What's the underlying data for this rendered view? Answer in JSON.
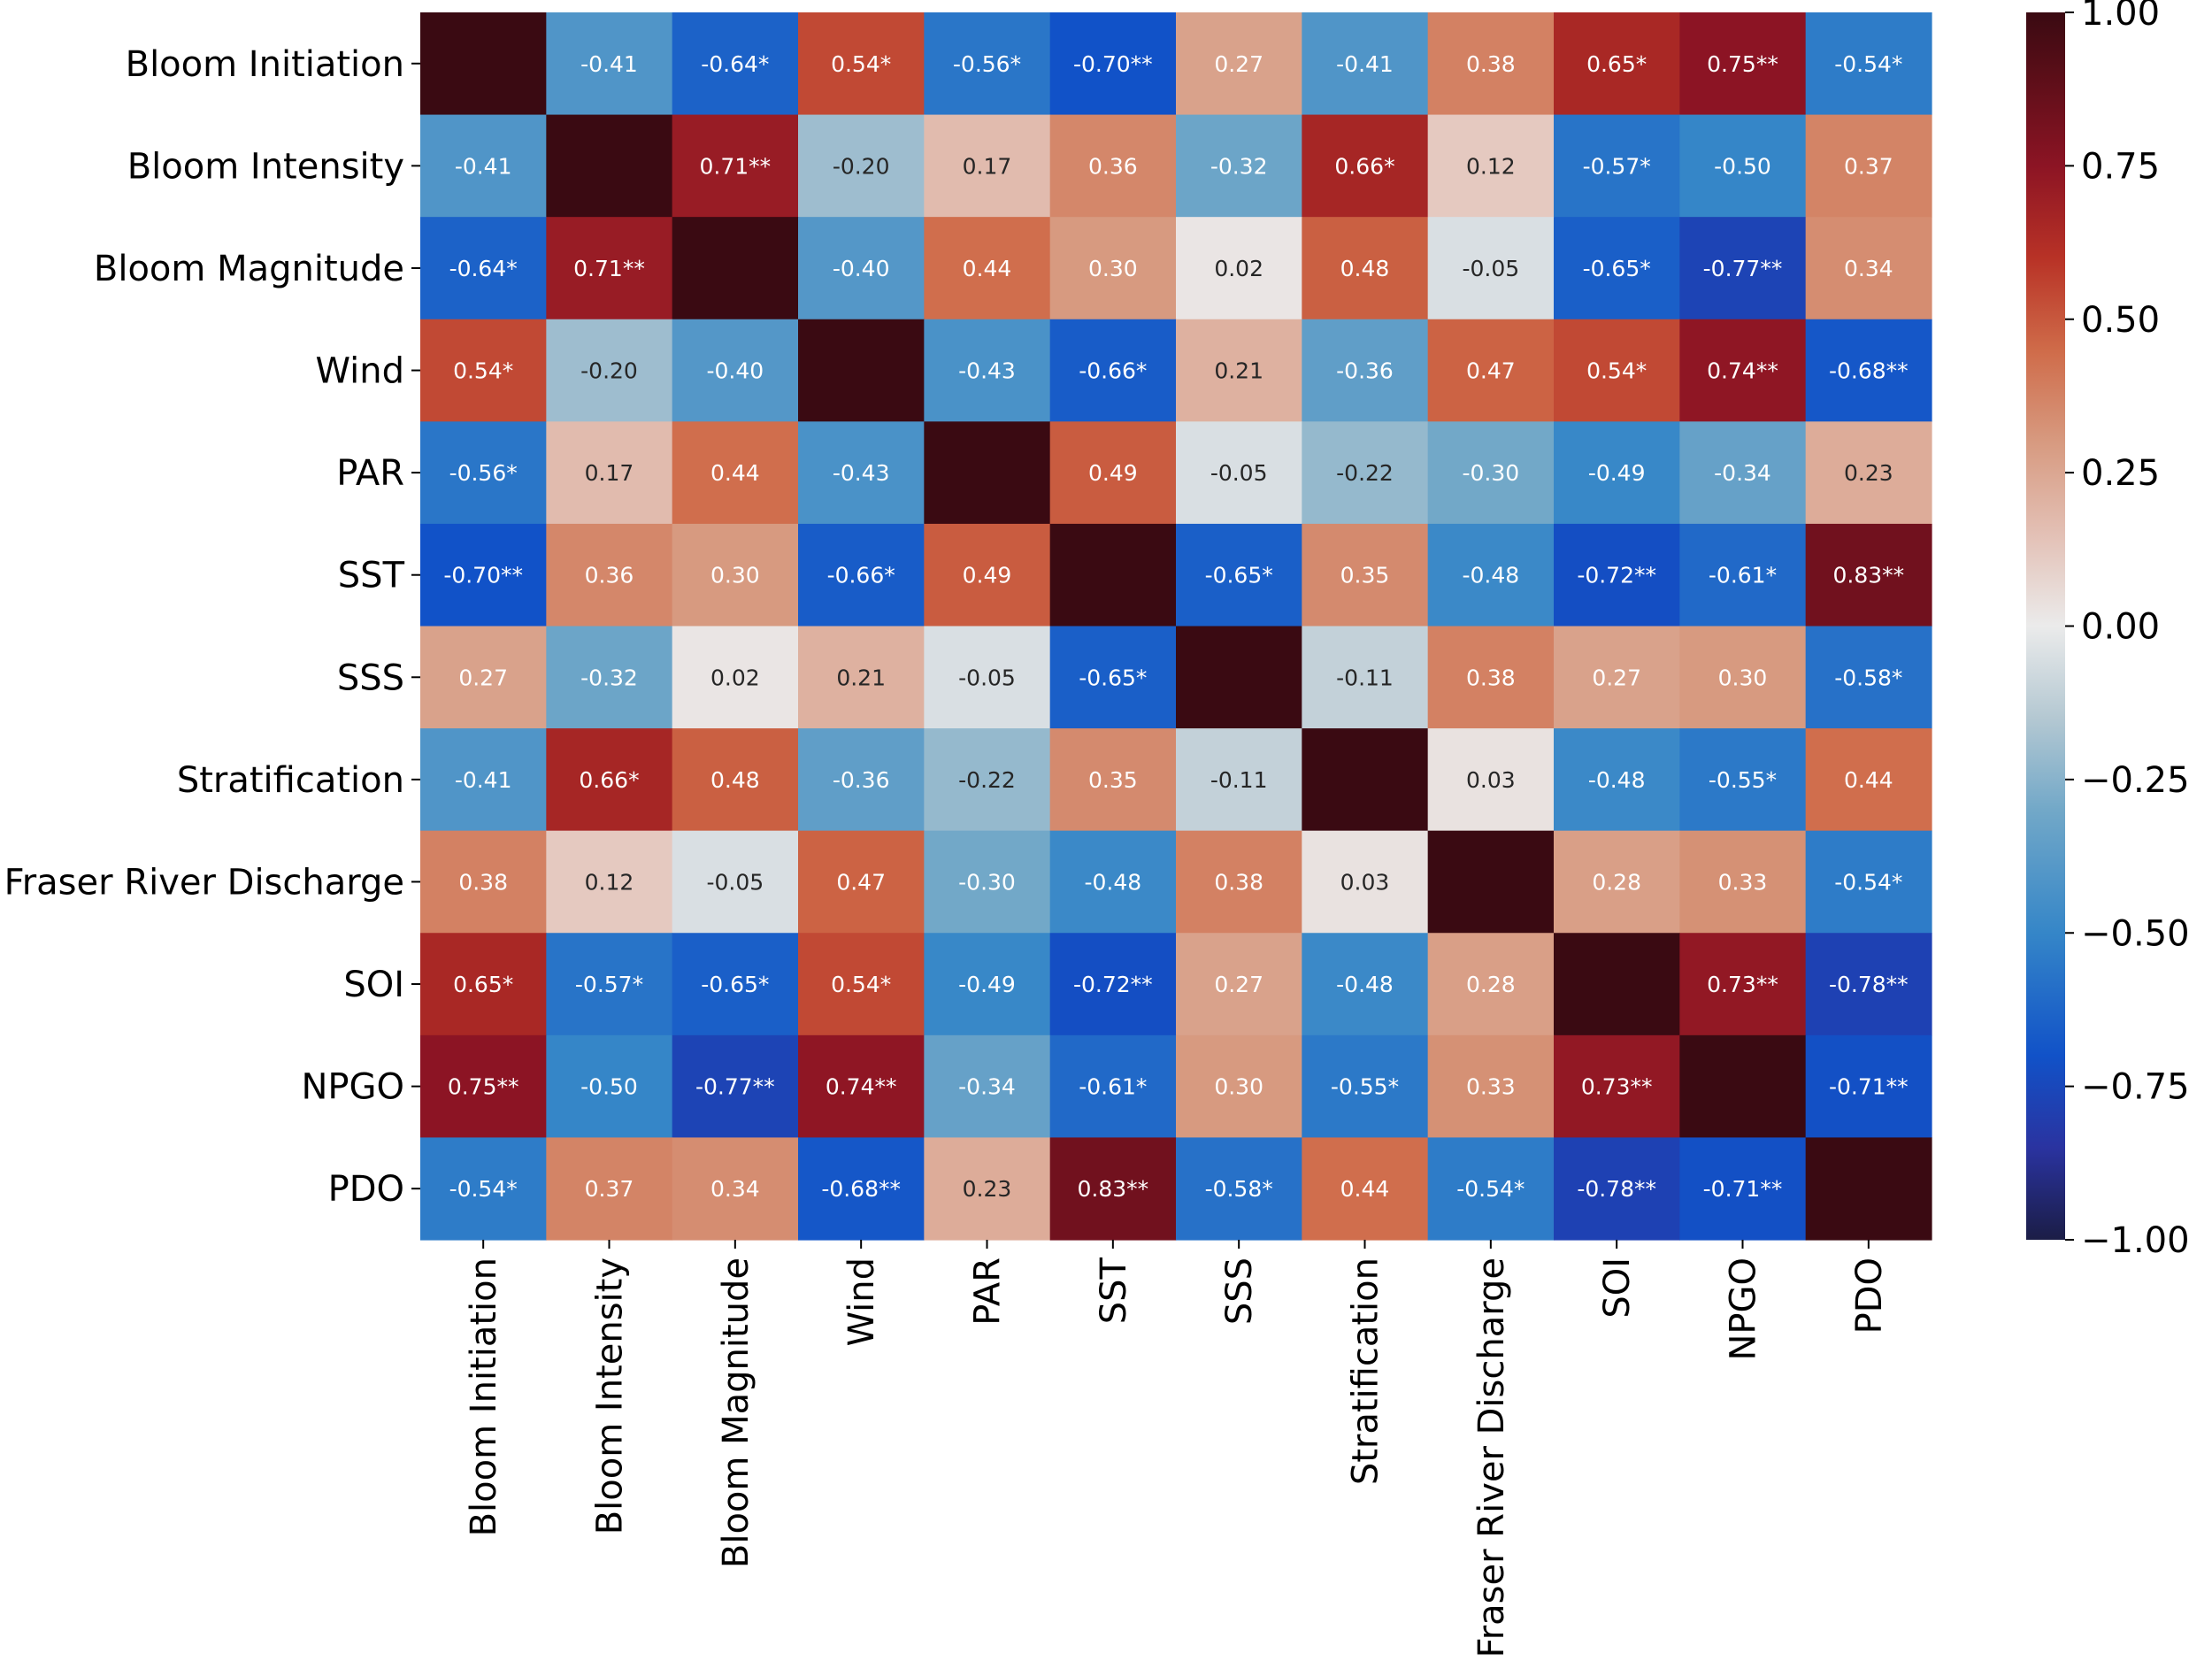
{
  "chart_data": {
    "type": "heatmap",
    "title": "",
    "xlabel": "",
    "ylabel": "",
    "variables": [
      "Bloom Initiation",
      "Bloom Intensity",
      "Bloom Magnitude",
      "Wind",
      "PAR",
      "SST",
      "SSS",
      "Stratification",
      "Fraser River Discharge",
      "SOI",
      "NPGO",
      "PDO"
    ],
    "values": [
      [
        1.0,
        -0.41,
        -0.64,
        0.54,
        -0.56,
        -0.7,
        0.27,
        -0.41,
        0.38,
        0.65,
        0.75,
        -0.54
      ],
      [
        -0.41,
        1.0,
        0.71,
        -0.2,
        0.17,
        0.36,
        -0.32,
        0.66,
        0.12,
        -0.57,
        -0.5,
        0.37
      ],
      [
        -0.64,
        0.71,
        1.0,
        -0.4,
        0.44,
        0.3,
        0.02,
        0.48,
        -0.05,
        -0.65,
        -0.77,
        0.34
      ],
      [
        0.54,
        -0.2,
        -0.4,
        1.0,
        -0.43,
        -0.66,
        0.21,
        -0.36,
        0.47,
        0.54,
        0.74,
        -0.68
      ],
      [
        -0.56,
        0.17,
        0.44,
        -0.43,
        1.0,
        0.49,
        -0.05,
        -0.22,
        -0.3,
        -0.49,
        -0.34,
        0.23
      ],
      [
        -0.7,
        0.36,
        0.3,
        -0.66,
        0.49,
        1.0,
        -0.65,
        0.35,
        -0.48,
        -0.72,
        -0.61,
        0.83
      ],
      [
        0.27,
        -0.32,
        0.02,
        0.21,
        -0.05,
        -0.65,
        1.0,
        -0.11,
        0.38,
        0.27,
        0.3,
        -0.58
      ],
      [
        -0.41,
        0.66,
        0.48,
        -0.36,
        -0.22,
        0.35,
        -0.11,
        1.0,
        0.03,
        -0.48,
        -0.55,
        0.44
      ],
      [
        0.38,
        0.12,
        -0.05,
        0.47,
        -0.3,
        -0.48,
        0.38,
        0.03,
        1.0,
        0.28,
        0.33,
        -0.54
      ],
      [
        0.65,
        -0.57,
        -0.65,
        0.54,
        -0.49,
        -0.72,
        0.27,
        -0.48,
        0.28,
        1.0,
        0.73,
        -0.78
      ],
      [
        0.75,
        -0.5,
        -0.77,
        0.74,
        -0.34,
        -0.61,
        0.3,
        -0.55,
        0.33,
        0.73,
        1.0,
        -0.71
      ],
      [
        -0.54,
        0.37,
        0.34,
        -0.68,
        0.23,
        0.83,
        -0.58,
        0.44,
        -0.54,
        -0.78,
        -0.71,
        1.0
      ]
    ],
    "cell_labels": [
      [
        "",
        "-0.41",
        "-0.64*",
        "0.54*",
        "-0.56*",
        "-0.70**",
        "0.27",
        "-0.41",
        "0.38",
        "0.65*",
        "0.75**",
        "-0.54*"
      ],
      [
        "-0.41",
        "",
        "0.71**",
        "-0.20",
        "0.17",
        "0.36",
        "-0.32",
        "0.66*",
        "0.12",
        "-0.57*",
        "-0.50",
        "0.37"
      ],
      [
        "-0.64*",
        "0.71**",
        "",
        "-0.40",
        "0.44",
        "0.30",
        "0.02",
        "0.48",
        "-0.05",
        "-0.65*",
        "-0.77**",
        "0.34"
      ],
      [
        "0.54*",
        "-0.20",
        "-0.40",
        "",
        "-0.43",
        "-0.66*",
        "0.21",
        "-0.36",
        "0.47",
        "0.54*",
        "0.74**",
        "-0.68**"
      ],
      [
        "-0.56*",
        "0.17",
        "0.44",
        "-0.43",
        "",
        "0.49",
        "-0.05",
        "-0.22",
        "-0.30",
        "-0.49",
        "-0.34",
        "0.23"
      ],
      [
        "-0.70**",
        "0.36",
        "0.30",
        "-0.66*",
        "0.49",
        "",
        "-0.65*",
        "0.35",
        "-0.48",
        "-0.72**",
        "-0.61*",
        "0.83**"
      ],
      [
        "0.27",
        "-0.32",
        "0.02",
        "0.21",
        "-0.05",
        "-0.65*",
        "",
        "-0.11",
        "0.38",
        "0.27",
        "0.30",
        "-0.58*"
      ],
      [
        "-0.41",
        "0.66*",
        "0.48",
        "-0.36",
        "-0.22",
        "0.35",
        "-0.11",
        "",
        "0.03",
        "-0.48",
        "-0.55*",
        "0.44"
      ],
      [
        "0.38",
        "0.12",
        "-0.05",
        "0.47",
        "-0.30",
        "-0.48",
        "0.38",
        "0.03",
        "",
        "0.28",
        "0.33",
        "-0.54*"
      ],
      [
        "0.65*",
        "-0.57*",
        "-0.65*",
        "0.54*",
        "-0.49",
        "-0.72**",
        "0.27",
        "-0.48",
        "0.28",
        "",
        "0.73**",
        "-0.78**"
      ],
      [
        "0.75**",
        "-0.50",
        "-0.77**",
        "0.74**",
        "-0.34",
        "-0.61*",
        "0.30",
        "-0.55*",
        "0.33",
        "0.73**",
        "",
        "-0.71**"
      ],
      [
        "-0.54*",
        "0.37",
        "0.34",
        "-0.68**",
        "0.23",
        "0.83**",
        "-0.58*",
        "0.44",
        "-0.54*",
        "-0.78**",
        "-0.71**",
        ""
      ]
    ],
    "colorbar": {
      "range": [
        -1.0,
        1.0
      ],
      "ticks": [
        1.0,
        0.75,
        0.5,
        0.25,
        0.0,
        -0.25,
        -0.5,
        -0.75,
        -1.0
      ],
      "tick_labels": [
        "1.00",
        "0.75",
        "0.50",
        "0.25",
        "0.00",
        "−0.25",
        "−0.50",
        "−0.75",
        "−1.00"
      ],
      "placement": "right"
    },
    "colormap_stops": [
      {
        "v": -1.0,
        "color": "#1b1d46"
      },
      {
        "v": -0.85,
        "color": "#2a33a0"
      },
      {
        "v": -0.7,
        "color": "#1152c8"
      },
      {
        "v": -0.5,
        "color": "#3586c8"
      },
      {
        "v": -0.3,
        "color": "#72a8c8"
      },
      {
        "v": -0.15,
        "color": "#b4c8d2"
      },
      {
        "v": 0.0,
        "color": "#ebebeb"
      },
      {
        "v": 0.15,
        "color": "#e3c0b5"
      },
      {
        "v": 0.3,
        "color": "#d79a80"
      },
      {
        "v": 0.45,
        "color": "#cf6b49"
      },
      {
        "v": 0.6,
        "color": "#b83226"
      },
      {
        "v": 0.75,
        "color": "#8c1424"
      },
      {
        "v": 0.9,
        "color": "#5a0e18"
      },
      {
        "v": 1.0,
        "color": "#3a0a12"
      }
    ],
    "grid": false
  }
}
